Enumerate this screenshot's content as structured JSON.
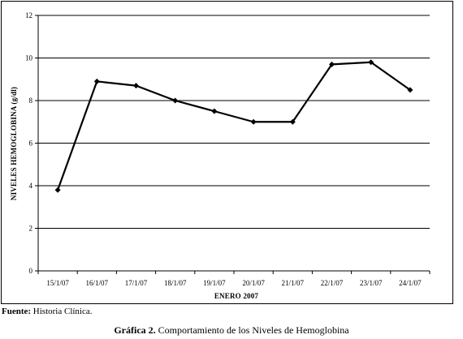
{
  "chart_data": {
    "type": "line",
    "categories": [
      "15/1/07",
      "16/1/07",
      "17/1/07",
      "18/1/07",
      "19/1/07",
      "20/1/07",
      "21/1/07",
      "22/1/07",
      "23/1/07",
      "24/1/07"
    ],
    "series": [
      {
        "values": [
          3.8,
          8.9,
          8.7,
          8.0,
          7.5,
          7.0,
          7.0,
          9.7,
          9.8,
          8.5
        ]
      }
    ],
    "xlabel": "ENERO 2007",
    "ylabel": "NIVELES HEMOGLOBINA (g/dl)",
    "ylim": [
      0,
      12
    ],
    "yticks": [
      0,
      2,
      4,
      6,
      8,
      10,
      12
    ],
    "grid": true,
    "line_color": "#000000"
  },
  "source": {
    "label": "Fuente:",
    "text": " Historia Clínica."
  },
  "caption": {
    "number": "Gráfica 2.",
    "text": " Comportamiento de los Niveles de Hemoglobina"
  }
}
